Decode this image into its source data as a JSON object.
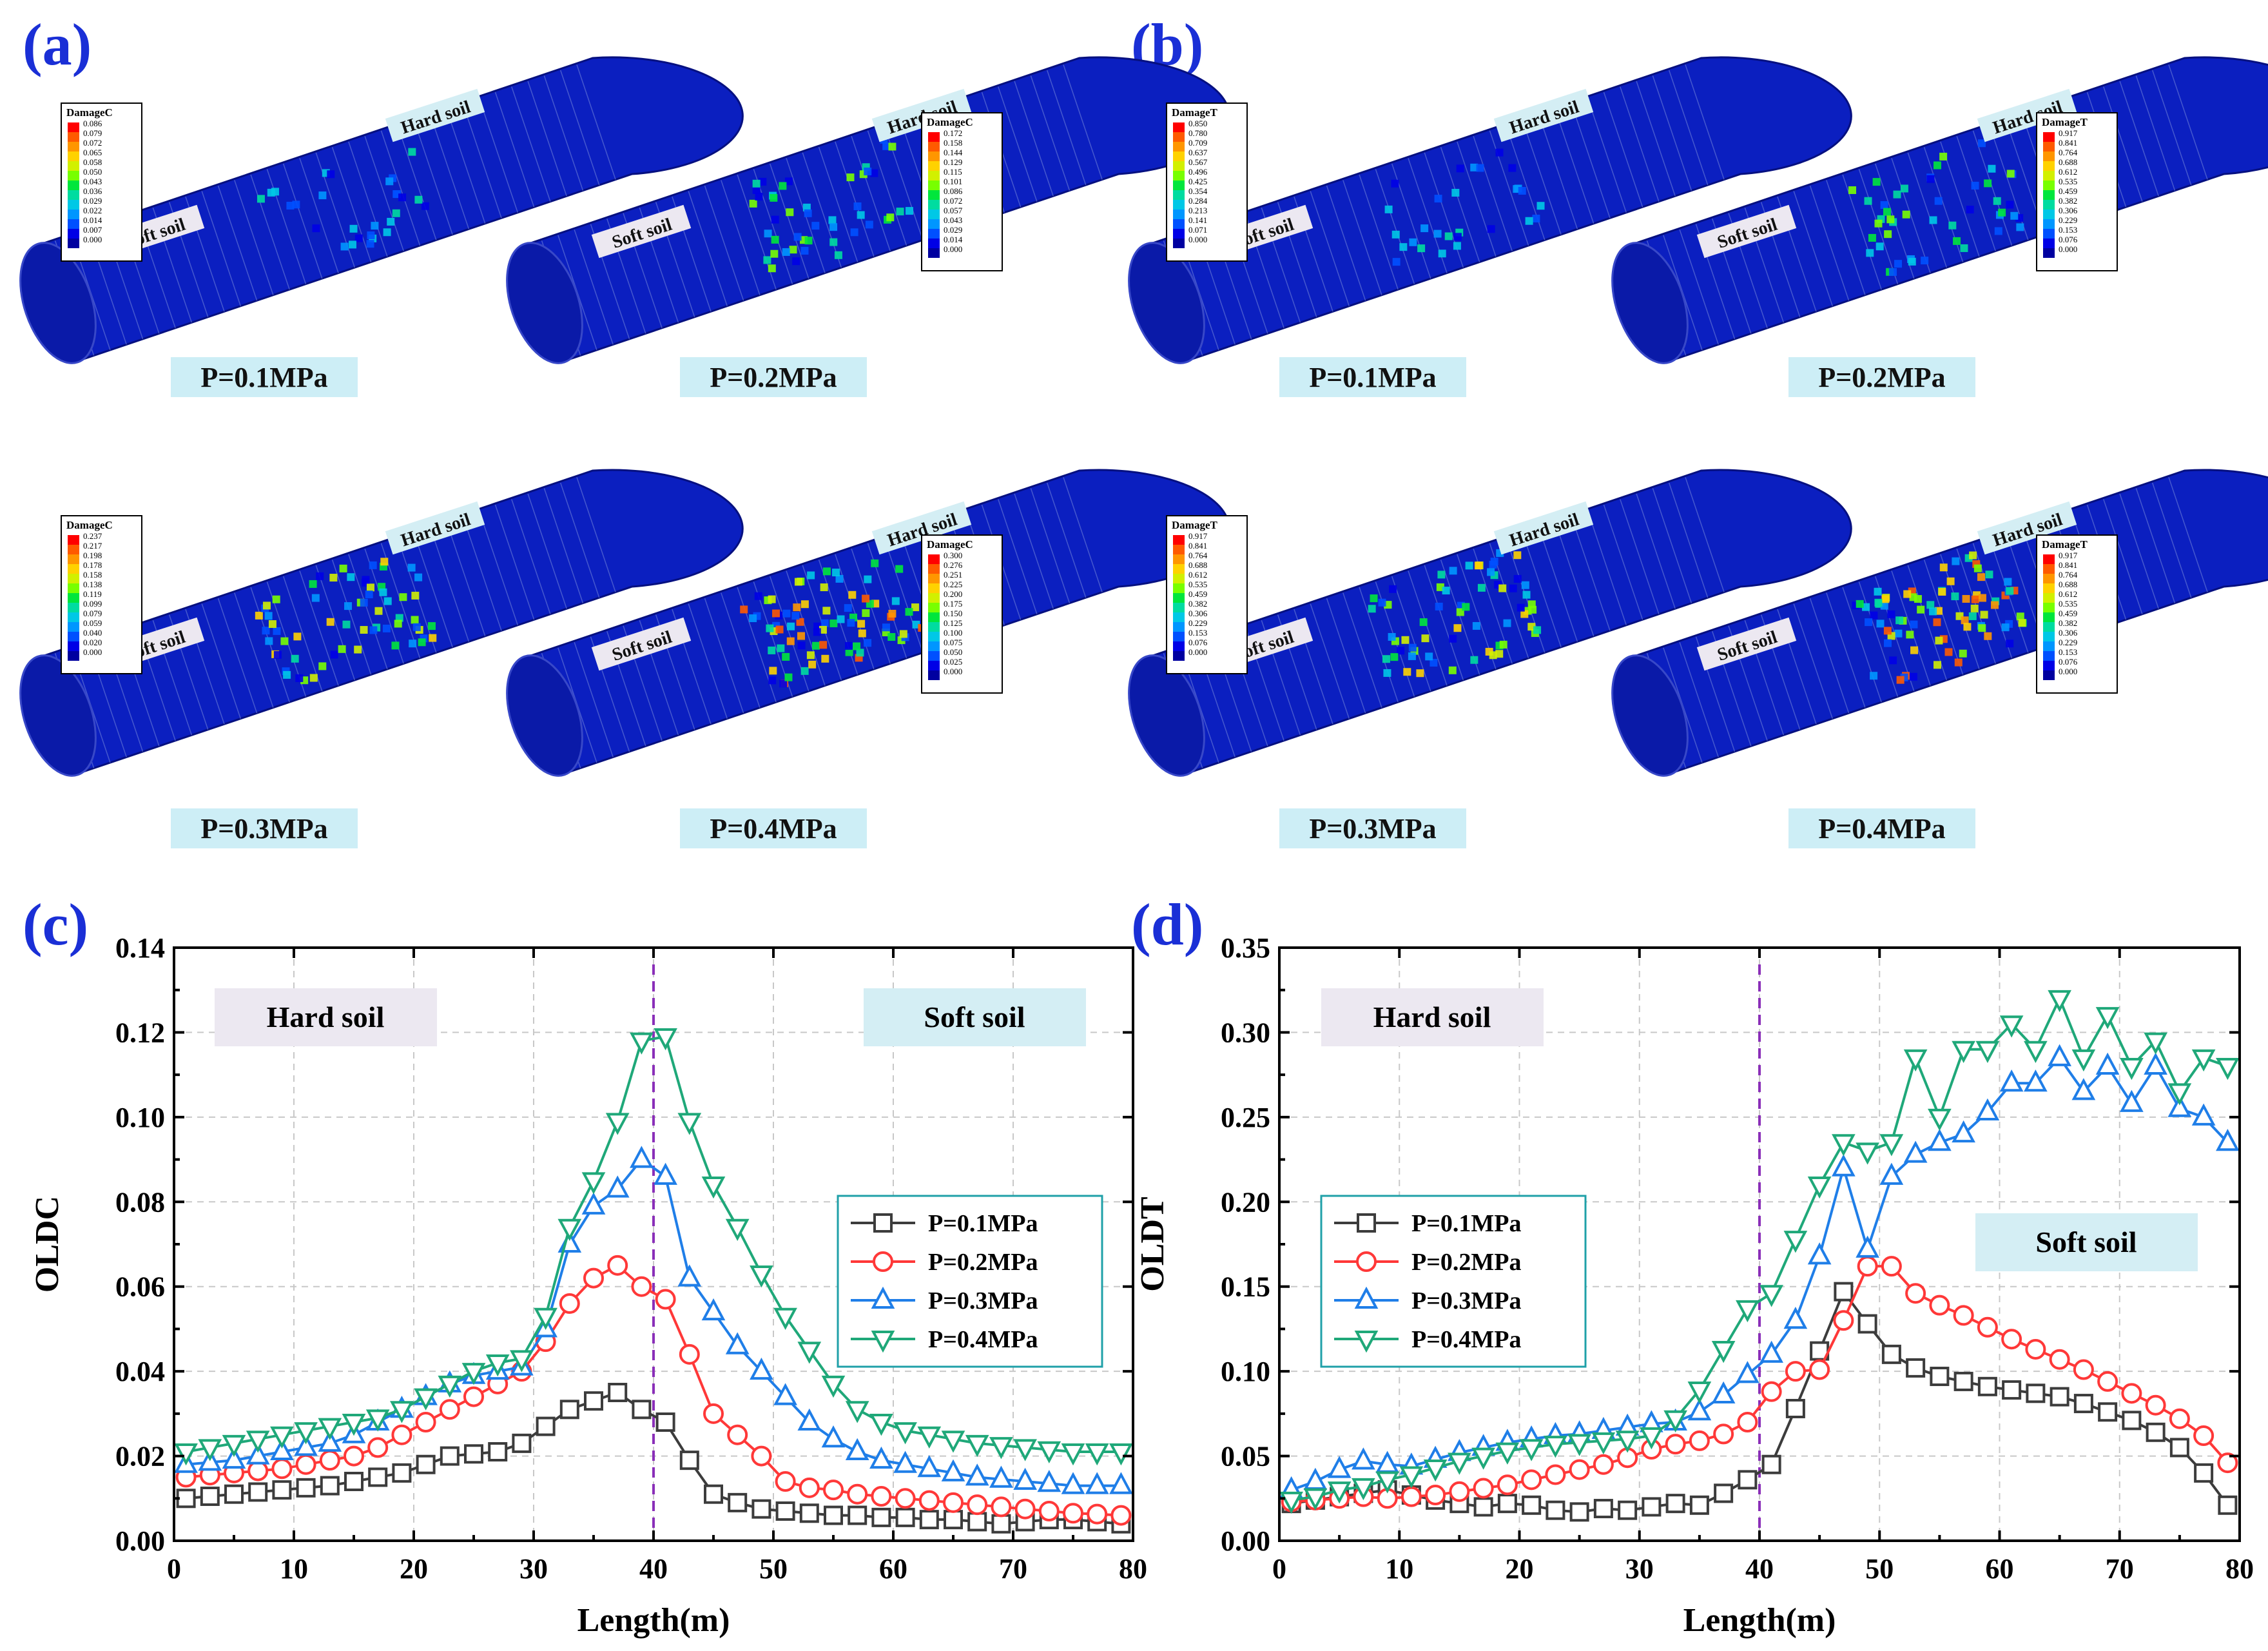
{
  "panel_labels": [
    "(a)",
    "(b)",
    "(c)",
    "(d)"
  ],
  "tunnel_panels": [
    {
      "id": "a1",
      "pressure": "P=0.1MPa",
      "soil_left": "Soft soil",
      "soil_right": "Hard soil",
      "legend_title": "DamageC",
      "legend_values": [
        "0.086",
        "0.079",
        "0.072",
        "0.065",
        "0.058",
        "0.050",
        "0.043",
        "0.036",
        "0.029",
        "0.022",
        "0.014",
        "0.007",
        "0.000"
      ]
    },
    {
      "id": "a2",
      "pressure": "P=0.2MPa",
      "soil_left": "Soft soil",
      "soil_right": "Hard soil",
      "legend_title": "DamageC",
      "legend_values": [
        "0.172",
        "0.158",
        "0.144",
        "0.129",
        "0.115",
        "0.101",
        "0.086",
        "0.072",
        "0.057",
        "0.043",
        "0.029",
        "0.014",
        "0.000"
      ]
    },
    {
      "id": "a3",
      "pressure": "P=0.3MPa",
      "soil_left": "Soft soil",
      "soil_right": "Hard soil",
      "legend_title": "DamageC",
      "legend_values": [
        "0.237",
        "0.217",
        "0.198",
        "0.178",
        "0.158",
        "0.138",
        "0.119",
        "0.099",
        "0.079",
        "0.059",
        "0.040",
        "0.020",
        "0.000"
      ]
    },
    {
      "id": "a4",
      "pressure": "P=0.4MPa",
      "soil_left": "Soft soil",
      "soil_right": "Hard soil",
      "legend_title": "DamageC",
      "legend_values": [
        "0.300",
        "0.276",
        "0.251",
        "0.225",
        "0.200",
        "0.175",
        "0.150",
        "0.125",
        "0.100",
        "0.075",
        "0.050",
        "0.025",
        "0.000"
      ]
    },
    {
      "id": "b1",
      "pressure": "P=0.1MPa",
      "soil_left": "Soft soil",
      "soil_right": "Hard soil",
      "legend_title": "DamageT",
      "legend_values": [
        "0.850",
        "0.780",
        "0.709",
        "0.637",
        "0.567",
        "0.496",
        "0.425",
        "0.354",
        "0.284",
        "0.213",
        "0.141",
        "0.071",
        "0.000"
      ]
    },
    {
      "id": "b2",
      "pressure": "P=0.2MPa",
      "soil_left": "Soft soil",
      "soil_right": "Hard soil",
      "legend_title": "DamageT",
      "legend_values": [
        "0.917",
        "0.841",
        "0.764",
        "0.688",
        "0.612",
        "0.535",
        "0.459",
        "0.382",
        "0.306",
        "0.229",
        "0.153",
        "0.076",
        "0.000"
      ]
    },
    {
      "id": "b3",
      "pressure": "P=0.3MPa",
      "soil_left": "Soft soil",
      "soil_right": "Hard soil",
      "legend_title": "DamageT",
      "legend_values": [
        "0.917",
        "0.841",
        "0.764",
        "0.688",
        "0.612",
        "0.535",
        "0.459",
        "0.382",
        "0.306",
        "0.229",
        "0.153",
        "0.076",
        "0.000"
      ]
    },
    {
      "id": "b4",
      "pressure": "P=0.4MPa",
      "soil_left": "Soft soil",
      "soil_right": "Hard soil",
      "legend_title": "DamageT",
      "legend_values": [
        "0.917",
        "0.841",
        "0.764",
        "0.688",
        "0.612",
        "0.535",
        "0.459",
        "0.382",
        "0.306",
        "0.229",
        "0.153",
        "0.076",
        "0.000"
      ]
    }
  ],
  "legend_colors": [
    "#ff0000",
    "#ff5a00",
    "#ff9600",
    "#ffd200",
    "#d2f000",
    "#78ff00",
    "#00e63c",
    "#00dca0",
    "#00c8e6",
    "#0096ff",
    "#0050ff",
    "#0000e6",
    "#0000a0"
  ],
  "series_style": [
    {
      "name": "P=0.1MPa",
      "color": "#3c3c3c",
      "marker": "square"
    },
    {
      "name": "P=0.2MPa",
      "color": "#ff3838",
      "marker": "circle"
    },
    {
      "name": "P=0.3MPa",
      "color": "#1f7ee8",
      "marker": "triangle-up"
    },
    {
      "name": "P=0.4MPa",
      "color": "#1fa879",
      "marker": "triangle-down"
    }
  ],
  "chart_data": [
    {
      "id": "c",
      "type": "line",
      "ylabel": "OLDC",
      "xlabel": "Length(m)",
      "xlim": [
        0,
        80
      ],
      "ylim": [
        0,
        0.14
      ],
      "xticks": [
        "0",
        "10",
        "20",
        "30",
        "40",
        "50",
        "60",
        "70",
        "80"
      ],
      "yticks": [
        "0.00",
        "0.02",
        "0.04",
        "0.06",
        "0.08",
        "0.10",
        "0.12",
        "0.14"
      ],
      "region_left": "Hard soil",
      "region_right": "Soft soil",
      "boundary_x": 40,
      "x": [
        1,
        3,
        5,
        7,
        9,
        11,
        13,
        15,
        17,
        19,
        21,
        23,
        25,
        27,
        29,
        31,
        33,
        35,
        37,
        39,
        41,
        43,
        45,
        47,
        49,
        51,
        53,
        55,
        57,
        59,
        61,
        63,
        65,
        67,
        69,
        71,
        73,
        75,
        77,
        79
      ],
      "series": [
        {
          "name": "P=0.1MPa",
          "values": [
            0.01,
            0.0105,
            0.011,
            0.0115,
            0.012,
            0.0125,
            0.013,
            0.014,
            0.015,
            0.016,
            0.018,
            0.02,
            0.0205,
            0.021,
            0.023,
            0.027,
            0.031,
            0.033,
            0.035,
            0.031,
            0.028,
            0.019,
            0.011,
            0.009,
            0.0075,
            0.007,
            0.0065,
            0.006,
            0.006,
            0.0055,
            0.0055,
            0.005,
            0.005,
            0.0045,
            0.004,
            0.0045,
            0.005,
            0.005,
            0.0045,
            0.004
          ]
        },
        {
          "name": "P=0.2MPa",
          "values": [
            0.015,
            0.0155,
            0.016,
            0.0165,
            0.017,
            0.018,
            0.019,
            0.02,
            0.022,
            0.025,
            0.028,
            0.031,
            0.034,
            0.037,
            0.04,
            0.047,
            0.056,
            0.062,
            0.065,
            0.06,
            0.057,
            0.044,
            0.03,
            0.025,
            0.02,
            0.014,
            0.0125,
            0.012,
            0.011,
            0.0105,
            0.01,
            0.0095,
            0.009,
            0.0085,
            0.008,
            0.0075,
            0.007,
            0.0065,
            0.0063,
            0.006
          ]
        },
        {
          "name": "P=0.3MPa",
          "values": [
            0.018,
            0.0185,
            0.019,
            0.02,
            0.021,
            0.022,
            0.023,
            0.025,
            0.028,
            0.031,
            0.034,
            0.037,
            0.039,
            0.04,
            0.041,
            0.05,
            0.07,
            0.079,
            0.083,
            0.09,
            0.086,
            0.062,
            0.054,
            0.046,
            0.04,
            0.034,
            0.028,
            0.024,
            0.021,
            0.019,
            0.018,
            0.017,
            0.016,
            0.015,
            0.0145,
            0.014,
            0.0135,
            0.013,
            0.013,
            0.013
          ]
        },
        {
          "name": "P=0.4MPa",
          "values": [
            0.021,
            0.022,
            0.023,
            0.024,
            0.025,
            0.026,
            0.027,
            0.028,
            0.029,
            0.031,
            0.034,
            0.037,
            0.04,
            0.042,
            0.043,
            0.053,
            0.074,
            0.085,
            0.099,
            0.118,
            0.119,
            0.099,
            0.084,
            0.074,
            0.063,
            0.053,
            0.045,
            0.037,
            0.031,
            0.028,
            0.026,
            0.025,
            0.024,
            0.023,
            0.0225,
            0.022,
            0.0215,
            0.021,
            0.021,
            0.021
          ]
        }
      ]
    },
    {
      "id": "d",
      "type": "line",
      "ylabel": "OLDT",
      "xlabel": "Length(m)",
      "xlim": [
        0,
        80
      ],
      "ylim": [
        0,
        0.35
      ],
      "xticks": [
        "0",
        "10",
        "20",
        "30",
        "40",
        "50",
        "60",
        "70",
        "80"
      ],
      "yticks": [
        "0.00",
        "0.05",
        "0.10",
        "0.15",
        "0.20",
        "0.25",
        "0.30",
        "0.35"
      ],
      "region_left": "Hard soil",
      "region_right": "Soft soil",
      "boundary_x": 40,
      "x": [
        1,
        3,
        5,
        7,
        9,
        11,
        13,
        15,
        17,
        19,
        21,
        23,
        25,
        27,
        29,
        31,
        33,
        35,
        37,
        39,
        41,
        43,
        45,
        47,
        49,
        51,
        53,
        55,
        57,
        59,
        61,
        63,
        65,
        67,
        69,
        71,
        73,
        75,
        77,
        79
      ],
      "series": [
        {
          "name": "P=0.1MPa",
          "values": [
            0.022,
            0.024,
            0.026,
            0.028,
            0.03,
            0.027,
            0.024,
            0.022,
            0.02,
            0.022,
            0.021,
            0.018,
            0.017,
            0.019,
            0.018,
            0.02,
            0.022,
            0.021,
            0.028,
            0.036,
            0.045,
            0.078,
            0.112,
            0.147,
            0.128,
            0.11,
            0.102,
            0.097,
            0.094,
            0.091,
            0.089,
            0.087,
            0.085,
            0.081,
            0.076,
            0.071,
            0.064,
            0.055,
            0.04,
            0.021
          ]
        },
        {
          "name": "P=0.2MPa",
          "values": [
            0.023,
            0.024,
            0.025,
            0.026,
            0.025,
            0.026,
            0.027,
            0.029,
            0.031,
            0.033,
            0.036,
            0.039,
            0.042,
            0.045,
            0.049,
            0.054,
            0.057,
            0.059,
            0.063,
            0.07,
            0.088,
            0.1,
            0.101,
            0.13,
            0.162,
            0.162,
            0.146,
            0.139,
            0.133,
            0.126,
            0.119,
            0.113,
            0.107,
            0.101,
            0.094,
            0.087,
            0.08,
            0.072,
            0.062,
            0.046
          ]
        },
        {
          "name": "P=0.3MPa",
          "values": [
            0.03,
            0.035,
            0.042,
            0.047,
            0.045,
            0.044,
            0.048,
            0.052,
            0.055,
            0.058,
            0.06,
            0.062,
            0.063,
            0.065,
            0.067,
            0.069,
            0.07,
            0.076,
            0.086,
            0.098,
            0.11,
            0.13,
            0.168,
            0.22,
            0.172,
            0.215,
            0.228,
            0.235,
            0.24,
            0.253,
            0.27,
            0.27,
            0.285,
            0.265,
            0.28,
            0.258,
            0.28,
            0.255,
            0.25,
            0.235
          ]
        },
        {
          "name": "P=0.4MPa",
          "values": [
            0.024,
            0.026,
            0.03,
            0.032,
            0.036,
            0.039,
            0.043,
            0.047,
            0.05,
            0.053,
            0.055,
            0.057,
            0.058,
            0.059,
            0.06,
            0.062,
            0.072,
            0.089,
            0.113,
            0.137,
            0.146,
            0.178,
            0.21,
            0.235,
            0.23,
            0.235,
            0.285,
            0.25,
            0.29,
            0.29,
            0.305,
            0.29,
            0.32,
            0.285,
            0.31,
            0.28,
            0.295,
            0.265,
            0.285,
            0.28
          ]
        }
      ]
    }
  ]
}
